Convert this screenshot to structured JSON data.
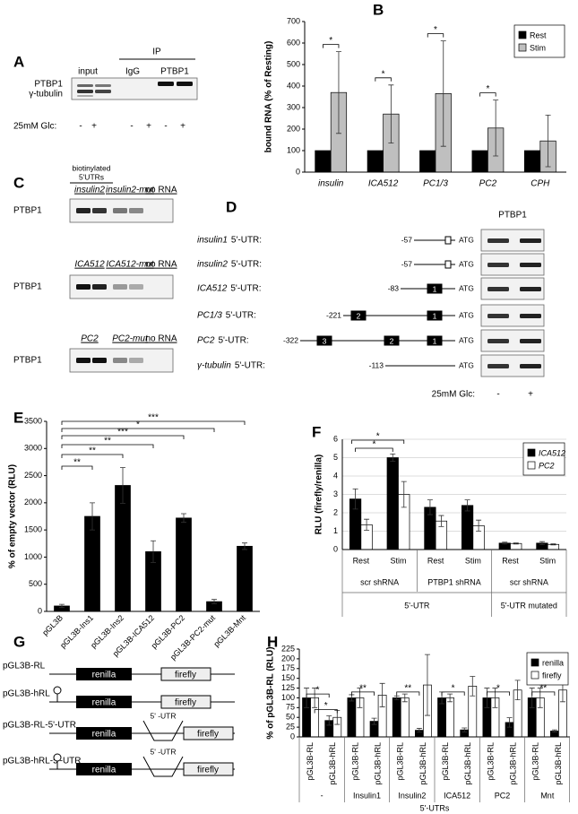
{
  "panel_labels": [
    "A",
    "B",
    "C",
    "D",
    "E",
    "F",
    "G",
    "H"
  ],
  "panel_a": {
    "ip": "IP",
    "lanes": [
      "input",
      "IgG",
      "PTBP1"
    ],
    "rows": [
      "PTBP1",
      "γ-tubulin"
    ],
    "condition": "25mM Glc:",
    "signs": [
      "-",
      "+",
      "-",
      "+",
      "-",
      "+"
    ]
  },
  "panel_c": {
    "header": [
      "biotinylated",
      "5'UTRs"
    ],
    "blots": [
      {
        "lanes": [
          "insulin2",
          "insulin2-mut",
          "no RNA"
        ],
        "row": "PTBP1"
      },
      {
        "lanes": [
          "ICA512",
          "ICA512-mut",
          "no RNA"
        ],
        "row": "PTBP1"
      },
      {
        "lanes": [
          "PC2",
          "PC2-mut",
          "no RNA"
        ],
        "row": "PTBP1"
      }
    ]
  },
  "panel_d": {
    "blot": "PTBP1",
    "atg": "ATG",
    "condition": "25mM Glc:",
    "signs": [
      "-",
      "+"
    ],
    "rows": [
      {
        "gene": "insulin1",
        "suffix": "5'-UTR:",
        "start": "-57",
        "exons": [
          "1"
        ]
      },
      {
        "gene": "insulin2",
        "suffix": "5'-UTR:",
        "start": "-57",
        "exons": [
          "1"
        ]
      },
      {
        "gene": "ICA512",
        "suffix": "5'-UTR:",
        "start": "-83",
        "exons": [
          "1"
        ]
      },
      {
        "gene": "PC1/3",
        "suffix": "5'-UTR:",
        "start": "-221",
        "exons": [
          "2",
          "1"
        ]
      },
      {
        "gene": "PC2",
        "suffix": "5'-UTR:",
        "start": "-322",
        "exons": [
          "3",
          "2",
          "1"
        ]
      },
      {
        "gene": "γ-tubulin",
        "suffix": "5'-UTR:",
        "start": "-113",
        "exons": []
      }
    ]
  },
  "panel_g": {
    "renilla": "renilla",
    "firefly": "firefly",
    "utr": "5' -UTR",
    "constructs": [
      {
        "name": "pGL3B-RL",
        "hairpin": false,
        "utr": false
      },
      {
        "name": "pGL3B-hRL",
        "hairpin": true,
        "utr": false
      },
      {
        "name": "pGL3B-RL-5'-UTR",
        "hairpin": false,
        "utr": true
      },
      {
        "name": "pGL3B-hRL-5'-UTR",
        "hairpin": true,
        "utr": true
      }
    ]
  },
  "chart_data": [
    {
      "type": "bar",
      "ylabel": "bound RNA (% of Resting)",
      "categories": [
        "insulin",
        "ICA512",
        "PC1/3",
        "PC2",
        "CPH"
      ],
      "series": [
        {
          "name": "Rest",
          "color": "#000000",
          "values": [
            100,
            100,
            100,
            100,
            100
          ]
        },
        {
          "name": "Stim",
          "color": "#bfbfbf",
          "values": [
            370,
            270,
            365,
            205,
            145
          ],
          "errors": [
            190,
            135,
            245,
            130,
            120
          ]
        }
      ],
      "ylim": [
        0,
        700
      ],
      "yticks": [
        0,
        100,
        200,
        300,
        400,
        500,
        600,
        700
      ],
      "grid": false,
      "legend": "upper right",
      "significance": [
        "*",
        "*",
        "*",
        "*",
        null
      ]
    },
    {
      "type": "bar",
      "ylabel": "% of empty vector (RLU)",
      "categories": [
        "pGL3B",
        "pGL3B-Ins1",
        "pGL3B-Ins2",
        "pGL3B-ICA512",
        "pGL3B-PC2",
        "pGL3B-PC2-mut",
        "pGL3B-Mnt"
      ],
      "values": [
        100,
        1750,
        2320,
        1100,
        1720,
        180,
        1200
      ],
      "errors": [
        30,
        250,
        330,
        200,
        80,
        40,
        60
      ],
      "color": "#000000",
      "ylim": [
        0,
        3500
      ],
      "yticks": [
        0,
        500,
        1000,
        1500,
        2000,
        2500,
        3000,
        3500
      ],
      "grid": false,
      "significance": [
        null,
        "**",
        "**",
        "**",
        "***",
        "*",
        "***"
      ]
    },
    {
      "type": "bar",
      "ylabel": "RLU (firefly/renilla)",
      "categories": [
        "Rest",
        "Stim",
        "Rest",
        "Stim",
        "Rest",
        "Stim"
      ],
      "groups": [
        "scr shRNA",
        "PTBP1 shRNA",
        "scr shRNA"
      ],
      "supergroups": [
        "5'-UTR",
        "5'-UTR mutated"
      ],
      "series": [
        {
          "name": "ICA512",
          "color": "#000000",
          "values": [
            2.75,
            5.0,
            2.3,
            2.4,
            0.35,
            0.35
          ],
          "errors": [
            0.55,
            0.2,
            0.4,
            0.3,
            0.05,
            0.08
          ]
        },
        {
          "name": "PC2",
          "color": "#ffffff",
          "values": [
            1.35,
            3.0,
            1.55,
            1.3,
            0.33,
            0.28
          ],
          "errors": [
            0.3,
            0.7,
            0.3,
            0.3,
            0.03,
            0.03
          ]
        }
      ],
      "ylim": [
        0,
        6
      ],
      "yticks": [
        0,
        1,
        2,
        3,
        4,
        5,
        6
      ],
      "grid": true,
      "legend": "upper right",
      "significance": [
        "*",
        "*"
      ]
    },
    {
      "type": "bar",
      "ylabel": "% of pGL3B-RL (RLU)",
      "xlabel": "5'-UTRs",
      "categories": [
        "pGL3B-RL",
        "pGL3B-hRL",
        "pGL3B-RL",
        "pGL3B-hRL",
        "pGL3B-RL",
        "pGL3B-hRL",
        "pGL3B-RL",
        "pGL3B-hRL",
        "pGL3B-RL",
        "pGL3B-hRL",
        "pGL3B-RL",
        "pGL3B-hRL"
      ],
      "groups": [
        "-",
        "Insulin1",
        "Insulin2",
        "ICA512",
        "PC2",
        "Mnt"
      ],
      "series": [
        {
          "name": "renilla",
          "color": "#000000",
          "values": [
            100,
            42,
            100,
            40,
            100,
            17,
            100,
            18,
            100,
            37,
            100,
            15
          ],
          "errors": [
            25,
            12,
            8,
            8,
            5,
            5,
            15,
            5,
            25,
            12,
            25,
            3
          ]
        },
        {
          "name": "firefly",
          "color": "#ffffff",
          "values": [
            100,
            50,
            100,
            107,
            100,
            133,
            100,
            130,
            100,
            120,
            100,
            120
          ],
          "errors": [
            25,
            18,
            25,
            30,
            10,
            78,
            10,
            25,
            25,
            25,
            25,
            30
          ]
        }
      ],
      "ylim": [
        0,
        225
      ],
      "yticks": [
        0,
        25,
        50,
        75,
        100,
        125,
        150,
        175,
        200,
        225
      ],
      "grid": false,
      "legend": "upper right",
      "significance": [
        "*",
        "*",
        "**",
        "**",
        "*",
        "*",
        "**"
      ]
    }
  ]
}
